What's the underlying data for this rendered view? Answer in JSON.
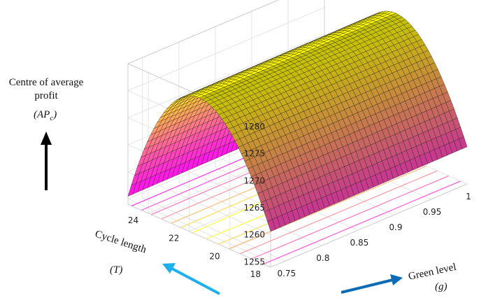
{
  "chart_data": {
    "type": "surface3d",
    "zlabel_lines": [
      "Centre of average",
      "profit"
    ],
    "zlabel_symbol": "(AP",
    "zlabel_sub": "c",
    "zlabel_close": ")",
    "xlabel": "Green level",
    "xlabel_symbol": "(g)",
    "ylabel": "Cycle length",
    "ylabel_symbol": "(T)",
    "xlim": [
      0.73,
      1.0
    ],
    "ylim": [
      18,
      25
    ],
    "zlim": [
      1254,
      1280
    ],
    "x_ticks": [
      0.75,
      0.8,
      0.85,
      0.9,
      0.95,
      1
    ],
    "x_tick_labels": [
      "0.75",
      "0.8",
      "0.85",
      "0.9",
      "0.95",
      "1"
    ],
    "y_ticks": [
      18,
      20,
      22,
      24
    ],
    "y_tick_labels": [
      "18",
      "20",
      "22",
      "24"
    ],
    "z_ticks": [
      1255,
      1260,
      1265,
      1270,
      1275,
      1280
    ],
    "z_tick_labels": [
      "1255",
      "1260",
      "1265",
      "1270",
      "1275",
      "1280"
    ],
    "surface_samples": [
      {
        "T": 18,
        "g": 0.73,
        "profit": 1254.5
      },
      {
        "T": 21.5,
        "g": 0.73,
        "profit": 1279.5
      },
      {
        "T": 25,
        "g": 0.73,
        "profit": 1258.5
      },
      {
        "T": 21.5,
        "g": 1.0,
        "profit": 1279.5
      },
      {
        "T": 18,
        "g": 1.0,
        "profit": 1254
      }
    ],
    "grid": true,
    "colormap": [
      "#ff00ff",
      "#ffff00"
    ],
    "contours_on_floor": true
  }
}
